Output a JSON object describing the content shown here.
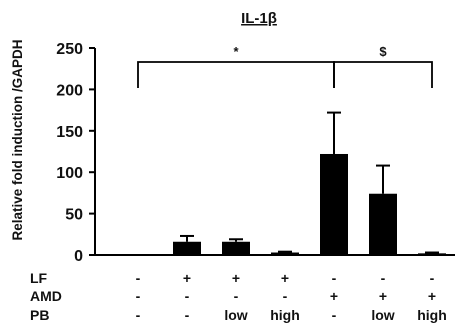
{
  "chart_data": {
    "type": "bar",
    "title": "IL-1β",
    "ylabel": "Relative fold induction /GAPDH",
    "ylim": [
      0,
      250
    ],
    "yticks": [
      0,
      50,
      100,
      150,
      200,
      250
    ],
    "grid": false,
    "bar_color": "#000000",
    "values": [
      0.5,
      16,
      16,
      3,
      122,
      74,
      2
    ],
    "errors": [
      0,
      7,
      3,
      1,
      50,
      34,
      1
    ],
    "conditions": [
      {
        "label": "LF",
        "marks": [
          "-",
          "+",
          "+",
          "+",
          "-",
          "-",
          "-"
        ]
      },
      {
        "label": "AMD",
        "marks": [
          "-",
          "-",
          "-",
          "-",
          "+",
          "+",
          "+"
        ]
      },
      {
        "label": "PB",
        "marks": [
          "-",
          "-",
          "low",
          "high",
          "-",
          "low",
          "high"
        ]
      }
    ],
    "annotations": [
      {
        "text": "*",
        "from_bar": 0,
        "to_bar": 4
      },
      {
        "text": "$",
        "from_bar": 4,
        "to_bar": 6
      }
    ]
  }
}
